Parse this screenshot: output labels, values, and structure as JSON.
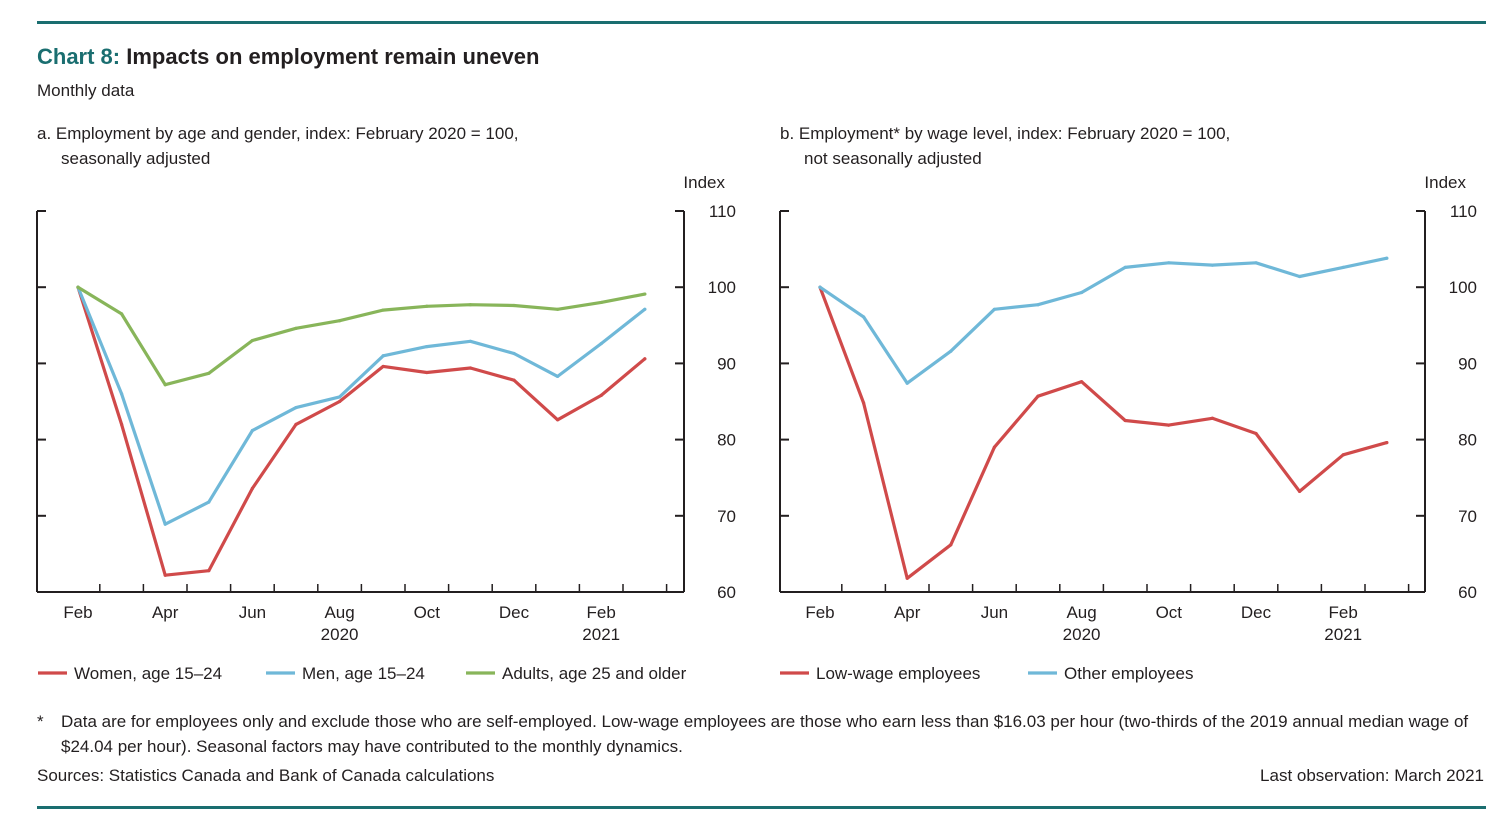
{
  "header": {
    "chart_number": "Chart 8:",
    "title": "Impacts on employment remain uneven",
    "subtitle": "Monthly data"
  },
  "footer": {
    "footnote_marker": "*",
    "footnote": "Data are for employees only and exclude those who are self-employed. Low-wage employees are those who earn less than $16.03 per hour (two-thirds of the 2019 annual median wage of $24.04 per hour). Seasonal factors may have contributed to the monthly dynamics.",
    "sources": "Sources: Statistics Canada and Bank of Canada calculations",
    "last_observation": "Last observation: March 2021"
  },
  "colors": {
    "rule": "#1a6e70",
    "red": "#d04a4a",
    "blue": "#6fb8d8",
    "green": "#88b55a"
  },
  "chart_data": [
    {
      "type": "line",
      "title_line1": "a. Employment by age and gender, index: February 2020 = 100,",
      "title_line2": "seasonally adjusted",
      "ylabel": "Index",
      "ylim": [
        60,
        110
      ],
      "yticks": [
        60,
        70,
        80,
        90,
        100,
        110
      ],
      "x": [
        "2020-02",
        "2020-03",
        "2020-04",
        "2020-05",
        "2020-06",
        "2020-07",
        "2020-08",
        "2020-09",
        "2020-10",
        "2020-11",
        "2020-12",
        "2021-01",
        "2021-02",
        "2021-03"
      ],
      "xtick_labels": [
        {
          "month": "2020-02",
          "label": "Feb"
        },
        {
          "month": "2020-04",
          "label": "Apr"
        },
        {
          "month": "2020-06",
          "label": "Jun"
        },
        {
          "month": "2020-08",
          "label": "Aug"
        },
        {
          "month": "2020-10",
          "label": "Oct"
        },
        {
          "month": "2020-12",
          "label": "Dec"
        },
        {
          "month": "2021-02",
          "label": "Feb"
        }
      ],
      "year_labels": [
        {
          "month": "2020-08",
          "label": "2020"
        },
        {
          "month": "2021-02",
          "label": "2021"
        }
      ],
      "legend_position": "bottom",
      "series": [
        {
          "name": "Women, age 15–24",
          "color": "#d04a4a",
          "values": [
            100,
            82,
            62.2,
            62.8,
            73.6,
            82,
            85,
            89.6,
            88.8,
            89.4,
            87.8,
            82.6,
            85.8,
            90.6
          ]
        },
        {
          "name": "Men, age 15–24",
          "color": "#6fb8d8",
          "values": [
            100,
            86,
            68.9,
            71.8,
            81.2,
            84.2,
            85.6,
            91,
            92.2,
            92.9,
            91.3,
            88.3,
            92.6,
            97.1
          ]
        },
        {
          "name": "Adults, age 25 and older",
          "color": "#88b55a",
          "values": [
            100,
            96.5,
            87.2,
            88.7,
            93,
            94.6,
            95.6,
            97,
            97.5,
            97.7,
            97.6,
            97.1,
            98,
            99.1
          ]
        }
      ]
    },
    {
      "type": "line",
      "title_line1": "b. Employment* by wage level, index: February 2020 = 100,",
      "title_line2": "not seasonally adjusted",
      "ylabel": "Index",
      "ylim": [
        60,
        110
      ],
      "yticks": [
        60,
        70,
        80,
        90,
        100,
        110
      ],
      "x": [
        "2020-02",
        "2020-03",
        "2020-04",
        "2020-05",
        "2020-06",
        "2020-07",
        "2020-08",
        "2020-09",
        "2020-10",
        "2020-11",
        "2020-12",
        "2021-01",
        "2021-02",
        "2021-03"
      ],
      "xtick_labels": [
        {
          "month": "2020-02",
          "label": "Feb"
        },
        {
          "month": "2020-04",
          "label": "Apr"
        },
        {
          "month": "2020-06",
          "label": "Jun"
        },
        {
          "month": "2020-08",
          "label": "Aug"
        },
        {
          "month": "2020-10",
          "label": "Oct"
        },
        {
          "month": "2020-12",
          "label": "Dec"
        },
        {
          "month": "2021-02",
          "label": "Feb"
        }
      ],
      "year_labels": [
        {
          "month": "2020-08",
          "label": "2020"
        },
        {
          "month": "2021-02",
          "label": "2021"
        }
      ],
      "legend_position": "bottom",
      "series": [
        {
          "name": "Low-wage employees",
          "color": "#d04a4a",
          "values": [
            100,
            84.8,
            61.8,
            66.2,
            79,
            85.7,
            87.6,
            82.5,
            81.9,
            82.8,
            80.8,
            73.2,
            78,
            79.6
          ]
        },
        {
          "name": "Other employees",
          "color": "#6fb8d8",
          "values": [
            100,
            96.1,
            87.4,
            91.6,
            97.1,
            97.7,
            99.3,
            102.6,
            103.2,
            102.9,
            103.2,
            101.4,
            102.6,
            103.8
          ]
        }
      ]
    }
  ]
}
